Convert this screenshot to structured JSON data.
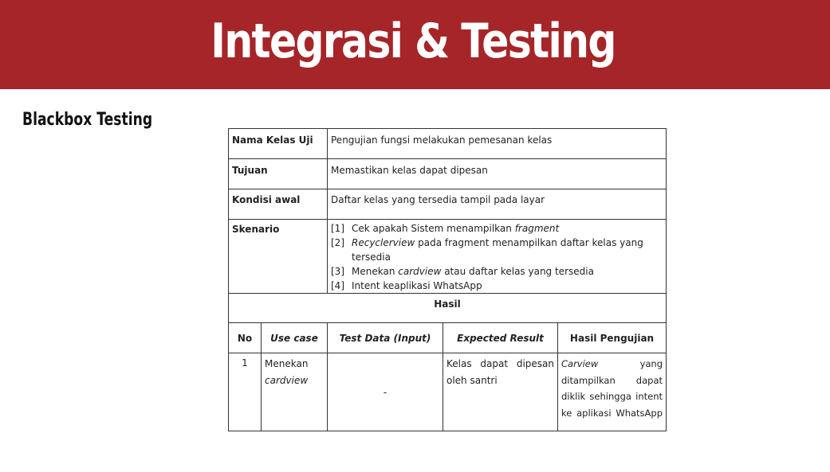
{
  "slide": {
    "title": "Integrasi & Testing",
    "subtitle": "Blackbox Testing"
  },
  "table": {
    "rows": {
      "nama_kelas_uji": {
        "label": "Nama Kelas Uji",
        "value": "Pengujian fungsi melakukan pemesanan kelas"
      },
      "tujuan": {
        "label": "Tujuan",
        "value": "Memastikan kelas dapat dipesan"
      },
      "kondisi_awal": {
        "label": "Kondisi awal",
        "value": "Daftar kelas yang tersedia tampil pada layar"
      },
      "skenario": {
        "label": "Skenario",
        "steps": [
          {
            "num": "[1]",
            "pre": "Cek apakah Sistem menampilkan ",
            "em": "fragment",
            "post": ""
          },
          {
            "num": "[2]",
            "pre": "",
            "em": "Recyclerview",
            "post": " pada fragment menampilkan daftar kelas yang tersedia"
          },
          {
            "num": "[3]",
            "pre": "Menekan ",
            "em": "cardview",
            "post": " atau daftar kelas yang tersedia"
          },
          {
            "num": "[4]",
            "pre": "Intent keaplikasi WhatsApp",
            "em": "",
            "post": ""
          }
        ]
      }
    },
    "hasil_label": "Hasil",
    "headers": [
      "No",
      "Use case",
      "Test Data (Input)",
      "Expected Result",
      "Hasil Pengujian"
    ],
    "result_rows": [
      {
        "no": "1",
        "use_case_line1": "Menekan",
        "use_case_line2": "cardview",
        "test_data": "-",
        "expected_line1": "Kelas dapat dipesan",
        "expected_line2": "oleh santri",
        "hasil_line1_em": "Carview",
        "hasil_line1_rest": "yang",
        "hasil_line2": "ditampilkan dapat",
        "hasil_line3": "diklik sehingga intent",
        "hasil_line4": "ke aplikasi WhatsApp"
      }
    ]
  }
}
